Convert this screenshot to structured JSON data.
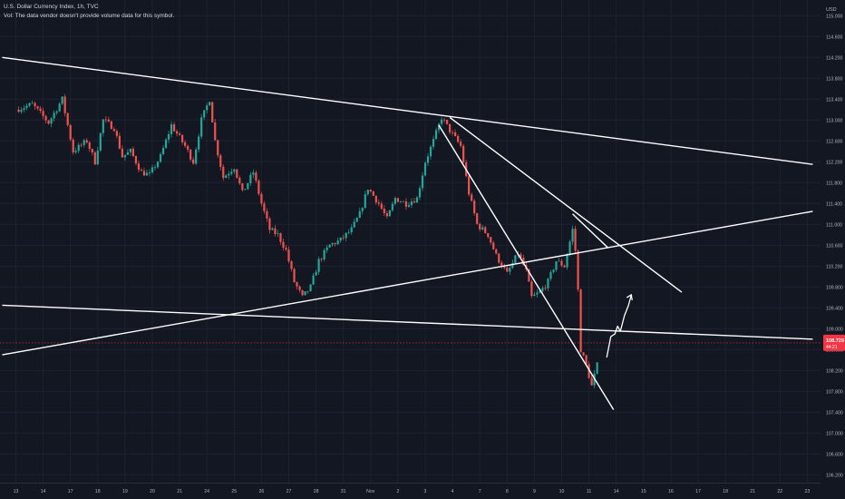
{
  "header": {
    "symbol_line": "U.S. Dollar Currency Index, 1h, TVC",
    "vol_line": "Vol: The data vendor doesn't provide volume data for this symbol."
  },
  "colors": {
    "background": "#131722",
    "up": "#26a69a",
    "down": "#ef5350",
    "drawing": "#ffffff",
    "grid": "#1e2230",
    "axis_text": "#b2b5be",
    "price_label_bg": "#f23645"
  },
  "chart_data": {
    "type": "candlestick",
    "title": "U.S. Dollar Currency Index, 1h, TVC",
    "currency": "USD",
    "grid": true,
    "price_ticks": [
      "115.000",
      "114.600",
      "114.200",
      "113.800",
      "113.400",
      "113.000",
      "112.600",
      "112.200",
      "111.800",
      "111.400",
      "111.000",
      "110.600",
      "110.200",
      "109.800",
      "109.400",
      "109.000",
      "108.600",
      "108.200",
      "107.800",
      "107.400",
      "107.000",
      "106.600",
      "106.200"
    ],
    "time_ticks": [
      "13",
      "14",
      "17",
      "18",
      "19",
      "20",
      "21",
      "24",
      "25",
      "26",
      "27",
      "28",
      "31",
      "Nov",
      "2",
      "3",
      "4",
      "7",
      "8",
      "9",
      "10",
      "11",
      "14",
      "15",
      "16",
      "17",
      "18",
      "21",
      "22",
      "23"
    ],
    "ylim": [
      106.05,
      115.3
    ],
    "last_price": "108.729",
    "last_price_sub": "44:21",
    "price_path": [
      {
        "t": 0.0,
        "p": 113.2
      },
      {
        "t": 0.6,
        "p": 113.3
      },
      {
        "t": 1.2,
        "p": 112.95
      },
      {
        "t": 1.7,
        "p": 113.4
      },
      {
        "t": 2.1,
        "p": 112.4
      },
      {
        "t": 2.6,
        "p": 112.6
      },
      {
        "t": 2.9,
        "p": 112.2
      },
      {
        "t": 3.2,
        "p": 113.0
      },
      {
        "t": 3.6,
        "p": 112.85
      },
      {
        "t": 3.9,
        "p": 112.3
      },
      {
        "t": 4.2,
        "p": 112.4
      },
      {
        "t": 4.6,
        "p": 112.0
      },
      {
        "t": 4.9,
        "p": 111.95
      },
      {
        "t": 5.3,
        "p": 112.3
      },
      {
        "t": 5.7,
        "p": 112.9
      },
      {
        "t": 6.2,
        "p": 112.5
      },
      {
        "t": 6.5,
        "p": 112.2
      },
      {
        "t": 6.8,
        "p": 113.0
      },
      {
        "t": 7.1,
        "p": 113.4
      },
      {
        "t": 7.3,
        "p": 112.6
      },
      {
        "t": 7.6,
        "p": 111.9
      },
      {
        "t": 8.0,
        "p": 112.1
      },
      {
        "t": 8.3,
        "p": 111.6
      },
      {
        "t": 8.7,
        "p": 112.0
      },
      {
        "t": 9.0,
        "p": 111.4
      },
      {
        "t": 9.3,
        "p": 110.9
      },
      {
        "t": 9.6,
        "p": 110.8
      },
      {
        "t": 9.9,
        "p": 110.5
      },
      {
        "t": 10.2,
        "p": 109.9
      },
      {
        "t": 10.5,
        "p": 109.6
      },
      {
        "t": 10.8,
        "p": 109.8
      },
      {
        "t": 11.1,
        "p": 110.3
      },
      {
        "t": 11.5,
        "p": 110.6
      },
      {
        "t": 11.9,
        "p": 110.7
      },
      {
        "t": 12.3,
        "p": 110.9
      },
      {
        "t": 12.6,
        "p": 111.2
      },
      {
        "t": 12.9,
        "p": 111.7
      },
      {
        "t": 13.3,
        "p": 111.4
      },
      {
        "t": 13.6,
        "p": 111.1
      },
      {
        "t": 13.9,
        "p": 111.5
      },
      {
        "t": 14.3,
        "p": 111.4
      },
      {
        "t": 14.7,
        "p": 111.5
      },
      {
        "t": 15.0,
        "p": 112.2
      },
      {
        "t": 15.3,
        "p": 112.6
      },
      {
        "t": 15.6,
        "p": 113.05
      },
      {
        "t": 15.9,
        "p": 112.8
      },
      {
        "t": 16.3,
        "p": 112.5
      },
      {
        "t": 16.6,
        "p": 111.6
      },
      {
        "t": 16.9,
        "p": 111.0
      },
      {
        "t": 17.3,
        "p": 110.8
      },
      {
        "t": 17.6,
        "p": 110.4
      },
      {
        "t": 18.0,
        "p": 110.05
      },
      {
        "t": 18.4,
        "p": 110.45
      },
      {
        "t": 18.7,
        "p": 110.1
      },
      {
        "t": 18.9,
        "p": 109.6
      },
      {
        "t": 19.2,
        "p": 109.7
      },
      {
        "t": 19.5,
        "p": 109.9
      },
      {
        "t": 19.8,
        "p": 110.3
      },
      {
        "t": 20.1,
        "p": 110.2
      },
      {
        "t": 20.4,
        "p": 110.9
      },
      {
        "t": 20.55,
        "p": 110.3
      },
      {
        "t": 20.7,
        "p": 108.6
      },
      {
        "t": 20.9,
        "p": 108.3
      },
      {
        "t": 21.1,
        "p": 107.9
      },
      {
        "t": 21.35,
        "p": 108.4
      }
    ],
    "drawings": {
      "trendlines": [
        {
          "from": [
            -0.5,
            114.2
          ],
          "to": [
            29.2,
            112.15
          ]
        },
        {
          "from": [
            -0.5,
            109.45
          ],
          "to": [
            29.2,
            108.8
          ]
        },
        {
          "from": [
            -0.5,
            108.5
          ],
          "to": [
            29.2,
            111.25
          ]
        },
        {
          "from": [
            15.5,
            112.9
          ],
          "to": [
            21.9,
            107.45
          ]
        },
        {
          "from": [
            15.9,
            113.05
          ],
          "to": [
            24.4,
            109.7
          ]
        },
        {
          "from": [
            20.4,
            111.2
          ],
          "to": [
            21.7,
            110.55
          ]
        }
      ],
      "projection": [
        {
          "t": 21.65,
          "p": 108.45
        },
        {
          "t": 21.8,
          "p": 108.85
        },
        {
          "t": 21.95,
          "p": 108.9
        },
        {
          "t": 22.05,
          "p": 109.05
        },
        {
          "t": 22.15,
          "p": 108.95
        },
        {
          "t": 22.3,
          "p": 109.25
        },
        {
          "t": 22.45,
          "p": 109.45
        },
        {
          "t": 22.55,
          "p": 109.65
        }
      ]
    }
  }
}
